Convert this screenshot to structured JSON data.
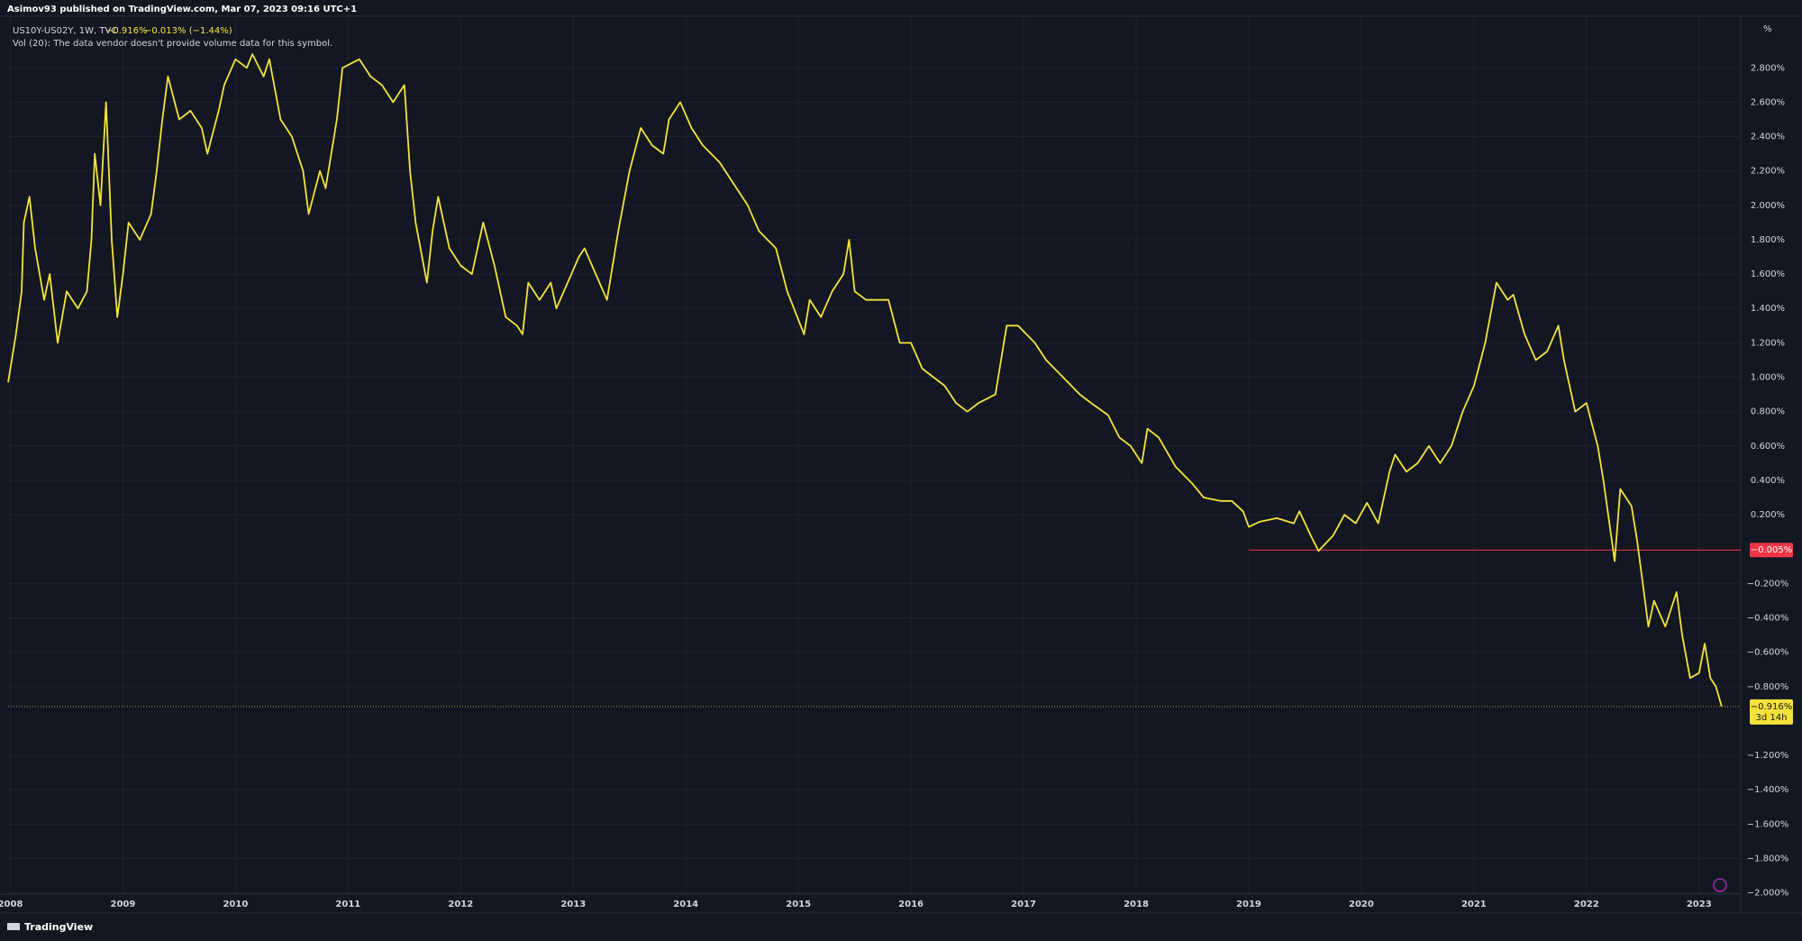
{
  "chart_data": {
    "type": "line",
    "header": "Asimov93 published on TradingView.com, Mar 07, 2023 09:16 UTC+1",
    "last_text": "−0.916%",
    "change_text": "−0.013% (−1.44%)",
    "volume_note": "Vol (20): The data vendor doesn't provide volume data for this symbol.",
    "axis_unit": "%",
    "footer": "TradingView",
    "x": [
      2007.98,
      2008.05,
      2008.1,
      2008.12,
      2008.17,
      2008.22,
      2008.3,
      2008.35,
      2008.42,
      2008.5,
      2008.6,
      2008.68,
      2008.72,
      2008.75,
      2008.8,
      2008.85,
      2008.9,
      2008.95,
      2009.0,
      2009.05,
      2009.15,
      2009.25,
      2009.3,
      2009.35,
      2009.4,
      2009.5,
      2009.6,
      2009.7,
      2009.75,
      2009.85,
      2009.9,
      2010.0,
      2010.1,
      2010.15,
      2010.25,
      2010.3,
      2010.4,
      2010.5,
      2010.6,
      2010.65,
      2010.75,
      2010.8,
      2010.9,
      2010.95,
      2011.1,
      2011.2,
      2011.3,
      2011.4,
      2011.5,
      2011.55,
      2011.6,
      2011.7,
      2011.75,
      2011.8,
      2011.9,
      2012.0,
      2012.1,
      2012.2,
      2012.3,
      2012.4,
      2012.5,
      2012.55,
      2012.6,
      2012.7,
      2012.8,
      2012.85,
      2012.95,
      2013.05,
      2013.1,
      2013.2,
      2013.3,
      2013.4,
      2013.5,
      2013.6,
      2013.7,
      2013.8,
      2013.85,
      2013.95,
      2014.05,
      2014.15,
      2014.3,
      2014.4,
      2014.55,
      2014.65,
      2014.8,
      2014.9,
      2015.05,
      2015.1,
      2015.2,
      2015.3,
      2015.4,
      2015.45,
      2015.5,
      2015.6,
      2015.8,
      2015.9,
      2016.0,
      2016.1,
      2016.3,
      2016.4,
      2016.5,
      2016.6,
      2016.75,
      2016.85,
      2016.95,
      2017.1,
      2017.2,
      2017.35,
      2017.5,
      2017.6,
      2017.75,
      2017.85,
      2017.95,
      2018.05,
      2018.1,
      2018.2,
      2018.35,
      2018.5,
      2018.6,
      2018.75,
      2018.85,
      2018.95,
      2019.0,
      2019.1,
      2019.25,
      2019.4,
      2019.45,
      2019.55,
      2019.62,
      2019.75,
      2019.85,
      2019.95,
      2020.05,
      2020.15,
      2020.25,
      2020.3,
      2020.4,
      2020.5,
      2020.6,
      2020.7,
      2020.8,
      2020.9,
      2021.0,
      2021.1,
      2021.2,
      2021.3,
      2021.35,
      2021.45,
      2021.55,
      2021.65,
      2021.75,
      2021.8,
      2021.9,
      2022.0,
      2022.1,
      2022.15,
      2022.25,
      2022.3,
      2022.4,
      2022.45,
      2022.5,
      2022.55,
      2022.6,
      2022.7,
      2022.8,
      2022.85,
      2022.92,
      2023.0,
      2023.05,
      2023.1,
      2023.15,
      2023.2
    ],
    "series": [
      {
        "name": "US10Y-US02Y, 1W, TVC",
        "color": "#f5e23b",
        "values": [
          0.97,
          1.25,
          1.5,
          1.9,
          2.05,
          1.75,
          1.45,
          1.6,
          1.2,
          1.5,
          1.4,
          1.5,
          1.8,
          2.3,
          2.0,
          2.6,
          1.8,
          1.35,
          1.6,
          1.9,
          1.8,
          1.95,
          2.2,
          2.5,
          2.75,
          2.5,
          2.55,
          2.45,
          2.3,
          2.55,
          2.7,
          2.85,
          2.8,
          2.88,
          2.75,
          2.85,
          2.5,
          2.4,
          2.2,
          1.95,
          2.2,
          2.1,
          2.5,
          2.8,
          2.85,
          2.75,
          2.7,
          2.6,
          2.7,
          2.2,
          1.9,
          1.55,
          1.85,
          2.05,
          1.75,
          1.65,
          1.6,
          1.9,
          1.65,
          1.35,
          1.3,
          1.25,
          1.55,
          1.45,
          1.55,
          1.4,
          1.55,
          1.7,
          1.75,
          1.6,
          1.45,
          1.85,
          2.2,
          2.45,
          2.35,
          2.3,
          2.5,
          2.6,
          2.45,
          2.35,
          2.25,
          2.15,
          2.0,
          1.85,
          1.75,
          1.5,
          1.25,
          1.45,
          1.35,
          1.5,
          1.6,
          1.8,
          1.5,
          1.45,
          1.45,
          1.2,
          1.2,
          1.05,
          0.95,
          0.85,
          0.8,
          0.85,
          0.9,
          1.3,
          1.3,
          1.2,
          1.1,
          1.0,
          0.9,
          0.85,
          0.78,
          0.65,
          0.6,
          0.5,
          0.7,
          0.65,
          0.48,
          0.38,
          0.3,
          0.28,
          0.28,
          0.22,
          0.13,
          0.16,
          0.18,
          0.15,
          0.22,
          0.08,
          -0.01,
          0.08,
          0.2,
          0.15,
          0.27,
          0.15,
          0.45,
          0.55,
          0.45,
          0.5,
          0.6,
          0.5,
          0.6,
          0.8,
          0.95,
          1.2,
          1.55,
          1.45,
          1.48,
          1.25,
          1.1,
          1.15,
          1.3,
          1.1,
          0.8,
          0.85,
          0.6,
          0.4,
          -0.07,
          0.35,
          0.25,
          0.05,
          -0.2,
          -0.45,
          -0.3,
          -0.45,
          -0.25,
          -0.5,
          -0.75,
          -0.72,
          -0.55,
          -0.75,
          -0.8,
          -0.916
        ]
      }
    ],
    "xlim": [
      2007.98,
      2023.37
    ],
    "xticks": [
      2008,
      2009,
      2010,
      2011,
      2012,
      2013,
      2014,
      2015,
      2016,
      2017,
      2018,
      2019,
      2020,
      2021,
      2022,
      2023
    ],
    "ylim": [
      -2.007,
      3.074
    ],
    "yticks": [
      {
        "value": 2.8,
        "label": "2.800%"
      },
      {
        "value": 2.6,
        "label": "2.600%"
      },
      {
        "value": 2.4,
        "label": "2.400%"
      },
      {
        "value": 2.2,
        "label": "2.200%"
      },
      {
        "value": 2.0,
        "label": "2.000%"
      },
      {
        "value": 1.8,
        "label": "1.800%"
      },
      {
        "value": 1.6,
        "label": "1.600%"
      },
      {
        "value": 1.4,
        "label": "1.400%"
      },
      {
        "value": 1.2,
        "label": "1.200%"
      },
      {
        "value": 1.0,
        "label": "1.000%"
      },
      {
        "value": 0.8,
        "label": "0.800%"
      },
      {
        "value": 0.6,
        "label": "0.600%"
      },
      {
        "value": 0.4,
        "label": "0.400%"
      },
      {
        "value": 0.2,
        "label": "0.200%"
      },
      {
        "value": -0.2,
        "label": "−0.200%"
      },
      {
        "value": -0.4,
        "label": "−0.400%"
      },
      {
        "value": -0.6,
        "label": "−0.600%"
      },
      {
        "value": -0.8,
        "label": "−0.800%"
      },
      {
        "value": -1.2,
        "label": "−1.200%"
      },
      {
        "value": -1.4,
        "label": "−1.400%"
      },
      {
        "value": -1.6,
        "label": "−1.600%"
      },
      {
        "value": -1.8,
        "label": "−1.800%"
      },
      {
        "value": -2.0,
        "label": "−2.000%"
      }
    ],
    "grid": true,
    "price_line": {
      "value": -0.005,
      "label": "−0.005%",
      "start_x": 2019.0,
      "color": "#f23645"
    },
    "last_price": {
      "value": -0.916,
      "label": "−0.916%",
      "countdown": "3d 14h"
    }
  }
}
